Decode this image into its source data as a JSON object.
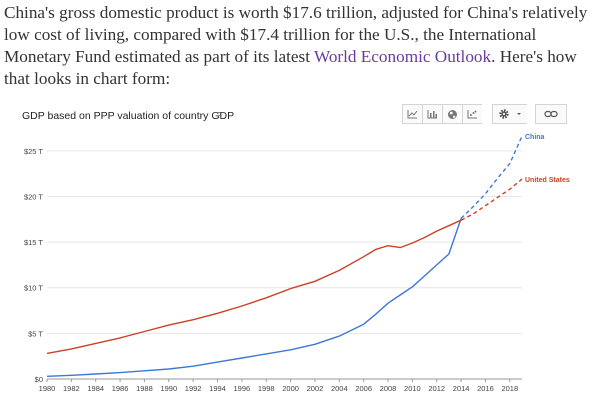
{
  "article": {
    "text_before": "China's gross domestic product is worth $17.6 trillion, adjusted for China's relatively low cost of living, compared with $17.4 trillion for the U.S., the International Monetary Fund estimated as part of its latest ",
    "link_text": "World Economic Outlook",
    "text_after": ". Here's how that looks in chart form:"
  },
  "toolbar": {
    "icons": [
      "line-chart-icon",
      "bar-chart-icon",
      "map-icon",
      "scatter-chart-icon",
      "gear-icon",
      "chevron-down-icon",
      "link-icon"
    ],
    "help_label": "?"
  },
  "colors": {
    "china": "#3c78d8",
    "us": "#cc4125",
    "grid": "#e6e6e6",
    "axis": "#999999"
  },
  "chart_data": {
    "type": "line",
    "title": "GDP based on PPP valuation of country GDP",
    "xlabel": "",
    "ylabel": "",
    "xlim": [
      1980,
      2019
    ],
    "ylim": [
      0,
      27.5
    ],
    "x_ticks": [
      1980,
      1982,
      1984,
      1986,
      1988,
      1990,
      1992,
      1994,
      1996,
      1998,
      2000,
      2002,
      2004,
      2006,
      2008,
      2010,
      2012,
      2014,
      2016,
      2018
    ],
    "y_ticks": [
      {
        "value": 0,
        "label": "$0"
      },
      {
        "value": 5,
        "label": "$5 T"
      },
      {
        "value": 10,
        "label": "$10 T"
      },
      {
        "value": 15,
        "label": "$15 T"
      },
      {
        "value": 20,
        "label": "$20 T"
      },
      {
        "value": 25,
        "label": "$25 T"
      }
    ],
    "grid": true,
    "legend": "right, end of lines",
    "forecast_from": 2014,
    "series": [
      {
        "name": "China",
        "key": "china",
        "x": [
          1980,
          1982,
          1984,
          1986,
          1988,
          1990,
          1992,
          1994,
          1996,
          1998,
          2000,
          2002,
          2004,
          2006,
          2007,
          2008,
          2009,
          2010,
          2011,
          2012,
          2013,
          2014,
          2015,
          2016,
          2017,
          2018,
          2019
        ],
        "y": [
          0.3,
          0.4,
          0.55,
          0.7,
          0.9,
          1.1,
          1.4,
          1.85,
          2.3,
          2.75,
          3.2,
          3.8,
          4.7,
          6.0,
          7.1,
          8.3,
          9.2,
          10.1,
          11.3,
          12.5,
          13.7,
          17.6,
          18.9,
          20.3,
          22.0,
          23.6,
          26.6
        ]
      },
      {
        "name": "United States",
        "key": "us",
        "x": [
          1980,
          1982,
          1984,
          1986,
          1988,
          1990,
          1992,
          1994,
          1996,
          1998,
          2000,
          2002,
          2004,
          2006,
          2007,
          2008,
          2009,
          2010,
          2011,
          2012,
          2013,
          2014,
          2015,
          2016,
          2017,
          2018,
          2019
        ],
        "y": [
          2.8,
          3.3,
          3.9,
          4.5,
          5.2,
          5.9,
          6.5,
          7.2,
          8.0,
          8.9,
          9.9,
          10.7,
          11.9,
          13.4,
          14.2,
          14.6,
          14.4,
          14.9,
          15.5,
          16.2,
          16.8,
          17.4,
          18.1,
          19.0,
          19.9,
          20.8,
          21.9
        ]
      }
    ]
  }
}
